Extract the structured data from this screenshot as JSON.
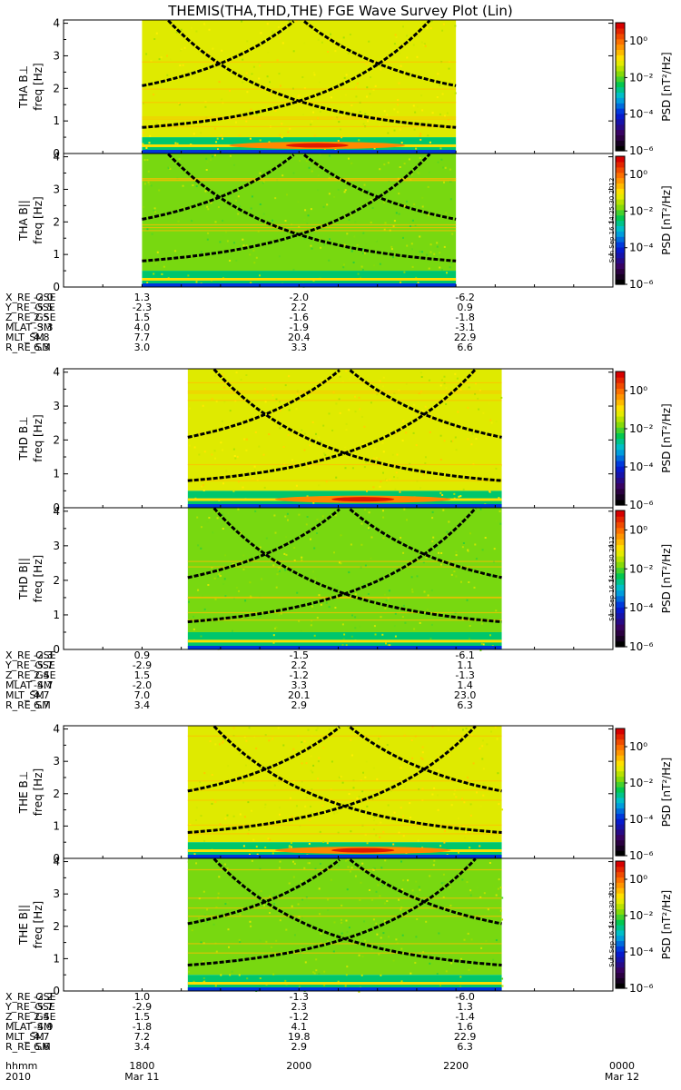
{
  "title": "THEMIS(THA,THD,THE) FGE Wave Survey Plot (Lin)",
  "colorbar": {
    "label": "PSD [nT²/Hz]",
    "ticks": [
      "10⁰",
      "10⁻²",
      "10⁻⁴",
      "10⁻⁶"
    ],
    "stamp": "Sun Sep 16 14:25:30 2012"
  },
  "chart_data": {
    "type": "heatmap",
    "x_axis": {
      "range": [
        "2010-03-11 17:00",
        "2010-03-12 00:00"
      ],
      "tick_values": [
        "1800",
        "2000",
        "2200",
        "0000"
      ],
      "row_label": "hhmm",
      "date_labels": [
        {
          "year": "2010",
          "date": "Mar 11"
        },
        {
          "date": "Mar 12"
        }
      ]
    },
    "y_axis": {
      "unit": "freq [Hz]",
      "range": [
        0,
        4.1
      ],
      "ticks": [
        "0",
        "1",
        "2",
        "3",
        "4"
      ]
    },
    "color_scale": {
      "type": "log",
      "range": [
        1e-06,
        10
      ],
      "unit": "nT^2/Hz"
    },
    "panels": [
      {
        "probe": "THA",
        "component": "B⊥",
        "ylabel": "THA B⊥",
        "data_start": "18:00",
        "data_end": "22:00"
      },
      {
        "probe": "THA",
        "component": "B||",
        "ylabel": "THA B||",
        "data_start": "18:00",
        "data_end": "22:00"
      },
      {
        "probe": "THD",
        "component": "B⊥",
        "ylabel": "THD B⊥",
        "data_start": "18:35",
        "data_end": "22:35"
      },
      {
        "probe": "THD",
        "component": "B||",
        "ylabel": "THD B||",
        "data_start": "18:35",
        "data_end": "22:35"
      },
      {
        "probe": "THE",
        "component": "B⊥",
        "ylabel": "THE B⊥",
        "data_start": "18:35",
        "data_end": "22:35"
      },
      {
        "probe": "THE",
        "component": "B||",
        "ylabel": "THE B||",
        "data_start": "18:35",
        "data_end": "22:35"
      }
    ],
    "ephemeris": [
      {
        "probe": "THA",
        "rows": [
          {
            "label": "X_RE_GSE",
            "values": [
              "-2.0",
              "1.3",
              "-2.0",
              "-6.2"
            ]
          },
          {
            "label": "Y_RE_GSE",
            "values": [
              "-5.5",
              "-2.3",
              "2.2",
              "0.9"
            ]
          },
          {
            "label": "Z_RE_GSE",
            "values": [
              "2.5",
              "1.5",
              "-1.6",
              "-1.8"
            ]
          },
          {
            "label": "MLAT_SM",
            "values": [
              "-3.3",
              "4.0",
              "-1.9",
              "-3.1"
            ]
          },
          {
            "label": "MLT_SM",
            "values": [
              "4.8",
              "7.7",
              "20.4",
              "22.9"
            ]
          },
          {
            "label": "R_RE_SM",
            "values": [
              "6.3",
              "3.0",
              "3.3",
              "6.6"
            ]
          }
        ]
      },
      {
        "probe": "THD",
        "rows": [
          {
            "label": "X_RE_GSE",
            "values": [
              "-2.3",
              "0.9",
              "-1.5",
              "-6.1"
            ]
          },
          {
            "label": "Y_RE_GSE",
            "values": [
              "-5.7",
              "-2.9",
              "2.2",
              "1.1"
            ]
          },
          {
            "label": "Z_RE_GSE",
            "values": [
              "2.4",
              "1.5",
              "-1.2",
              "-1.3"
            ]
          },
          {
            "label": "MLAT_SM",
            "values": [
              "-4.7",
              "-2.0",
              "3.3",
              "1.4"
            ]
          },
          {
            "label": "MLT_SM",
            "values": [
              "4.7",
              "7.0",
              "20.1",
              "23.0"
            ]
          },
          {
            "label": "R_RE_SM",
            "values": [
              "6.7",
              "3.4",
              "2.9",
              "6.3"
            ]
          }
        ]
      },
      {
        "probe": "THE",
        "rows": [
          {
            "label": "X_RE_GSE",
            "values": [
              "-2.2",
              "1.0",
              "-1.3",
              "-6.0"
            ]
          },
          {
            "label": "Y_RE_GSE",
            "values": [
              "-5.7",
              "-2.9",
              "2.3",
              "1.3"
            ]
          },
          {
            "label": "Z_RE_GSE",
            "values": [
              "2.4",
              "1.5",
              "-1.2",
              "-1.4"
            ]
          },
          {
            "label": "MLAT_SM",
            "values": [
              "-4.9",
              "-1.8",
              "4.1",
              "1.6"
            ]
          },
          {
            "label": "MLT_SM",
            "values": [
              "4.7",
              "7.2",
              "19.8",
              "22.9"
            ]
          },
          {
            "label": "R_RE_SM",
            "values": [
              "6.6",
              "3.4",
              "2.9",
              "6.3"
            ]
          }
        ]
      }
    ]
  }
}
